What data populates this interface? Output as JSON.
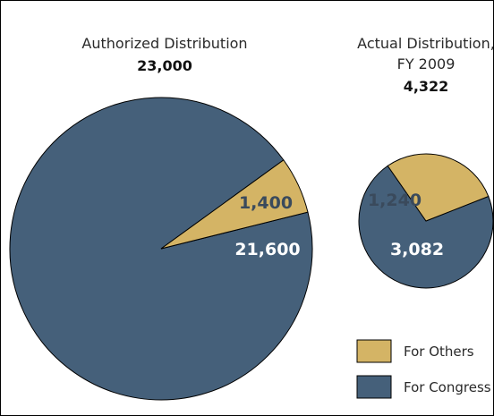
{
  "chart_data": [
    {
      "type": "pie",
      "title": "Authorized Distribution",
      "total": "23,000",
      "categories": [
        "For Others",
        "For Congress"
      ],
      "values": [
        1400,
        21600
      ],
      "labels": [
        "1,400",
        "21,600"
      ]
    },
    {
      "type": "pie",
      "title": "Actual Distribution, FY 2009",
      "title_lines": [
        "Actual Distribution,",
        "FY 2009"
      ],
      "total": "4,322",
      "categories": [
        "For Others",
        "For Congress"
      ],
      "values": [
        1240,
        3082
      ],
      "labels": [
        "1,240",
        "3,082"
      ]
    }
  ],
  "legend": {
    "position": "bottom-right",
    "items": [
      {
        "label": "For Others",
        "color": "#d4b465"
      },
      {
        "label": "For Congress",
        "color": "#45607a"
      }
    ]
  },
  "colors": {
    "others": "#d4b465",
    "congress": "#45607a",
    "others_label": "#3a4a5c",
    "congress_label": "#ffffff"
  }
}
